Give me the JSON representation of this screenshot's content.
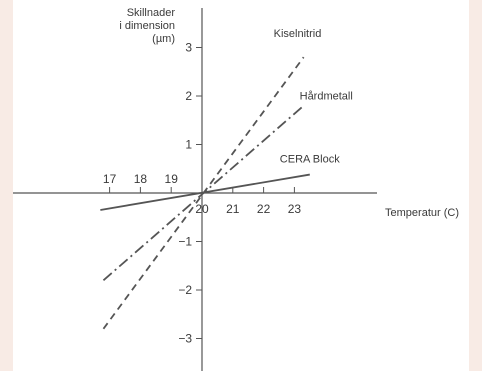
{
  "chart_data": {
    "type": "line",
    "ylabel": [
      "Skillnader",
      "i dimension",
      "(µm)"
    ],
    "xlabel": "Temperatur (C)",
    "x_ticks": [
      17,
      18,
      19,
      20,
      21,
      22,
      23
    ],
    "y_ticks": [
      -3,
      -2,
      -1,
      1,
      2,
      3
    ],
    "xlim": [
      16.5,
      24.0
    ],
    "ylim": [
      -3.6,
      3.7
    ],
    "grid": false,
    "series": [
      {
        "name": "Kiselnitrid",
        "style": "dashed",
        "x": [
          16.8,
          23.3
        ],
        "y": [
          -2.8,
          2.8
        ],
        "color": "#555555"
      },
      {
        "name": "Hårdmetall",
        "style": "dash-dot",
        "x": [
          16.8,
          23.3
        ],
        "y": [
          -1.8,
          1.8
        ],
        "color": "#555555"
      },
      {
        "name": "CERA Block",
        "style": "solid",
        "x": [
          16.7,
          23.5
        ],
        "y": [
          -0.35,
          0.38
        ],
        "color": "#555555"
      }
    ]
  }
}
